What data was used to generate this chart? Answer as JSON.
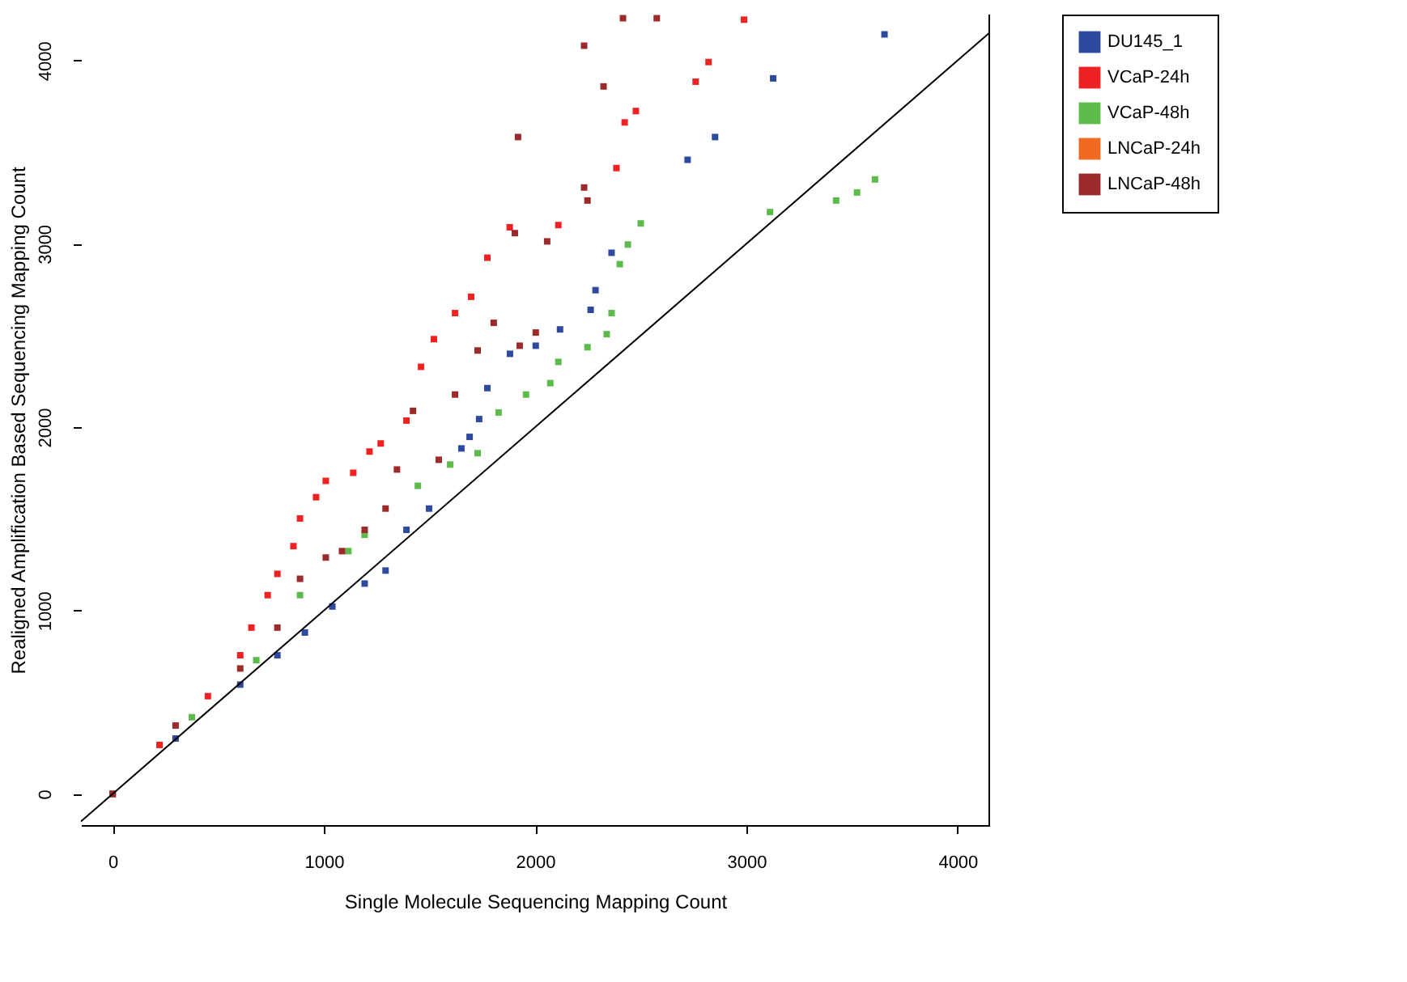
{
  "chart_data": {
    "type": "scatter",
    "xlabel": "Single Molecule Sequencing Mapping Count",
    "ylabel": "Realigned Amplification Based Sequencing Mapping Count",
    "xlim": [
      -150,
      4150
    ],
    "ylim": [
      -170,
      4250
    ],
    "xticks": [
      0,
      1000,
      2000,
      3000,
      4000
    ],
    "yticks": [
      0,
      1000,
      2000,
      3000,
      4000
    ],
    "grid": false,
    "legend": "top right",
    "marker": "square",
    "series": [
      {
        "name": "DU145_1",
        "color": "#2e4a9e",
        "x": [
          0,
          298,
          604,
          780,
          910,
          1040,
          1193,
          1292,
          1391,
          1498,
          1651,
          1690,
          1735,
          1774,
          1881,
          2003,
          2118,
          2263,
          2286,
          2362,
          2722,
          2852,
          3127,
          3654
        ],
        "values": [
          0,
          302,
          596,
          756,
          880,
          1022,
          1147,
          1218,
          1440,
          1556,
          1884,
          1947,
          2044,
          2213,
          2400,
          2444,
          2533,
          2640,
          2747,
          2951,
          3458,
          3582,
          3902,
          4142
        ]
      },
      {
        "name": "VCaP-24h",
        "color": "#ee2222",
        "x": [
          0,
          222,
          451,
          604,
          657,
          734,
          780,
          856,
          887,
          963,
          1009,
          1139,
          1216,
          1269,
          1391,
          1460,
          1521,
          1621,
          1697,
          1774,
          1880,
          2110,
          2385,
          2424,
          2477,
          2760,
          2821,
          2989
        ],
        "values": [
          0,
          267,
          533,
          756,
          907,
          1084,
          1200,
          1351,
          1502,
          1618,
          1707,
          1751,
          1867,
          1911,
          2036,
          2329,
          2480,
          2622,
          2711,
          2924,
          3090,
          3102,
          3413,
          3662,
          3724,
          3884,
          3991,
          4222
        ]
      },
      {
        "name": "VCaP-48h",
        "color": "#5cbb4a",
        "x": [
          0,
          375,
          680,
          887,
          1116,
          1193,
          1445,
          1598,
          1728,
          1827,
          1957,
          2072,
          2110,
          2248,
          2339,
          2362,
          2401,
          2439,
          2500,
          3112,
          3425,
          3524,
          3609
        ],
        "values": [
          0,
          418,
          729,
          1084,
          1324,
          1413,
          1680,
          1796,
          1858,
          2080,
          2178,
          2240,
          2356,
          2436,
          2507,
          2622,
          2889,
          2996,
          3111,
          3173,
          3236,
          3280,
          3351
        ]
      },
      {
        "name": "LNCaP-24h",
        "color": "#f26a22"
      },
      {
        "name": "LNCaP-48h",
        "color": "#9b2a2a",
        "x": [
          0,
          298,
          604,
          780,
          887,
          1009,
          1086,
          1193,
          1292,
          1346,
          1422,
          1544,
          1621,
          1728,
          1804,
          1927,
          2003,
          1904,
          1919,
          2057,
          2232,
          2248,
          2232,
          2324,
          2416,
          2576
        ],
        "values": [
          0,
          373,
          684,
          907,
          1173,
          1289,
          1324,
          1440,
          1556,
          1769,
          2089,
          1822,
          2178,
          2418,
          2569,
          2444,
          2516,
          3058,
          3582,
          3013,
          3307,
          3236,
          4080,
          3858,
          4230,
          4230
        ]
      },
      {
        "type": "line",
        "color": "#000000",
        "line_style": "solid",
        "marker": "none",
        "x": [
          -150,
          4150
        ],
        "values": [
          -150,
          4150
        ]
      }
    ]
  }
}
